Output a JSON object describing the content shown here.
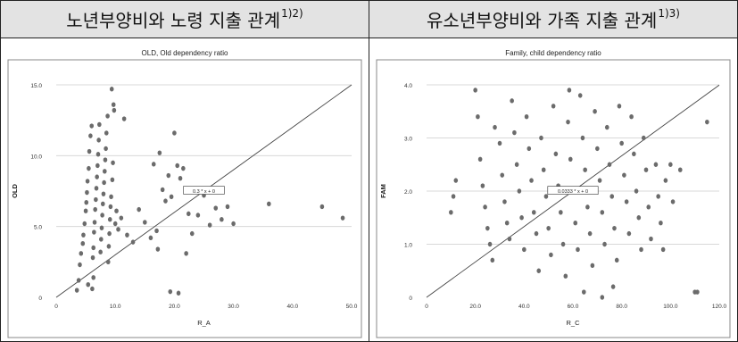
{
  "header": {
    "left": {
      "title": "노년부양비와 노령 지출 관계",
      "sup": "1)2)"
    },
    "right": {
      "title": "유소년부양비와 가족 지출 관계",
      "sup": "1)3)"
    }
  },
  "colors": {
    "point": "#6b6b6b",
    "line": "#444444",
    "grid": "#d8d8d8",
    "header_bg": "#e3e3e3"
  },
  "chart_data": [
    {
      "type": "scatter",
      "title": "OLD, Old dependency ratio",
      "xlabel": "R_A",
      "ylabel": "OLD",
      "xlim": [
        0,
        50
      ],
      "ylim": [
        0,
        15
      ],
      "xticks": [
        "0",
        "10.0",
        "20.0",
        "30.0",
        "40.0",
        "50.0"
      ],
      "yticks": [
        "0",
        "5.0",
        "10.0",
        "15.0"
      ],
      "fit_label": "0.3 * x + 0",
      "fit_slope": 0.3,
      "grid": "horizontal",
      "points": [
        [
          3.5,
          0.5
        ],
        [
          3.8,
          1.2
        ],
        [
          4,
          2.3
        ],
        [
          4.2,
          3.1
        ],
        [
          4.5,
          3.8
        ],
        [
          4.6,
          4.4
        ],
        [
          4.8,
          5.2
        ],
        [
          5,
          6.1
        ],
        [
          5.1,
          6.7
        ],
        [
          5.2,
          7.4
        ],
        [
          5.3,
          8.2
        ],
        [
          5.5,
          9.1
        ],
        [
          5.6,
          10.3
        ],
        [
          5.8,
          11.4
        ],
        [
          6,
          12.1
        ],
        [
          6.2,
          2.8
        ],
        [
          6.3,
          3.5
        ],
        [
          6.4,
          4.6
        ],
        [
          6.5,
          5.3
        ],
        [
          6.6,
          6.2
        ],
        [
          6.7,
          6.9
        ],
        [
          6.8,
          7.7
        ],
        [
          6.9,
          8.5
        ],
        [
          7,
          9.3
        ],
        [
          7.1,
          10.1
        ],
        [
          7.2,
          11.1
        ],
        [
          7.3,
          12.2
        ],
        [
          7.5,
          3.2
        ],
        [
          7.6,
          4.1
        ],
        [
          7.7,
          4.9
        ],
        [
          7.8,
          5.8
        ],
        [
          7.9,
          6.6
        ],
        [
          8,
          7.3
        ],
        [
          8.1,
          8.1
        ],
        [
          8.2,
          8.9
        ],
        [
          8.3,
          9.7
        ],
        [
          8.4,
          10.5
        ],
        [
          8.5,
          11.6
        ],
        [
          8.7,
          12.8
        ],
        [
          8.8,
          2.5
        ],
        [
          8.9,
          3.6
        ],
        [
          9,
          4.5
        ],
        [
          9.1,
          5.5
        ],
        [
          9.2,
          6.4
        ],
        [
          9.3,
          7.1
        ],
        [
          9.5,
          8.3
        ],
        [
          9.6,
          9.5
        ],
        [
          9.8,
          13.2
        ],
        [
          10,
          5.2
        ],
        [
          10.2,
          6.1
        ],
        [
          10.5,
          4.8
        ],
        [
          11,
          5.6
        ],
        [
          11.5,
          12.6
        ],
        [
          9.4,
          14.7
        ],
        [
          9.7,
          13.6
        ],
        [
          6.1,
          0.6
        ],
        [
          6.3,
          1.4
        ],
        [
          5.4,
          0.9
        ],
        [
          12,
          4.4
        ],
        [
          13,
          3.9
        ],
        [
          14,
          6.2
        ],
        [
          15,
          5.3
        ],
        [
          16,
          4.2
        ],
        [
          16.5,
          9.4
        ],
        [
          17,
          4.7
        ],
        [
          17.5,
          10.2
        ],
        [
          18,
          7.6
        ],
        [
          18.5,
          6.8
        ],
        [
          19,
          8.6
        ],
        [
          19.5,
          7.1
        ],
        [
          20,
          11.6
        ],
        [
          20.5,
          9.3
        ],
        [
          21,
          8.4
        ],
        [
          21.5,
          9.1
        ],
        [
          22,
          3.1
        ],
        [
          23,
          4.5
        ],
        [
          24,
          5.8
        ],
        [
          25,
          7.2
        ],
        [
          26,
          5.1
        ],
        [
          27,
          6.3
        ],
        [
          28,
          5.5
        ],
        [
          29,
          6.4
        ],
        [
          30,
          5.2
        ],
        [
          36,
          6.6
        ],
        [
          45,
          6.4
        ],
        [
          48.5,
          5.6
        ],
        [
          19.3,
          0.4
        ],
        [
          20.7,
          0.3
        ],
        [
          22.4,
          5.9
        ],
        [
          17.2,
          3.4
        ]
      ]
    },
    {
      "type": "scatter",
      "title": "Family, child dependency ratio",
      "xlabel": "R_C",
      "ylabel": "FAM",
      "xlim": [
        0,
        120
      ],
      "ylim": [
        0,
        4
      ],
      "xticks": [
        "0",
        "20.0",
        "40.0",
        "60.0",
        "80.0",
        "100.0",
        "120.0"
      ],
      "yticks": [
        "0",
        "1.0",
        "2.0",
        "3.0",
        "4.0"
      ],
      "fit_label": "0.0333 * x + 0",
      "fit_slope": 0.0333,
      "grid": "horizontal",
      "points": [
        [
          10,
          1.6
        ],
        [
          11,
          1.9
        ],
        [
          12,
          2.2
        ],
        [
          20,
          3.9
        ],
        [
          21,
          3.4
        ],
        [
          22,
          2.6
        ],
        [
          23,
          2.1
        ],
        [
          24,
          1.7
        ],
        [
          25,
          1.3
        ],
        [
          26,
          1
        ],
        [
          27,
          0.7
        ],
        [
          28,
          3.2
        ],
        [
          30,
          2.9
        ],
        [
          31,
          2.3
        ],
        [
          32,
          1.8
        ],
        [
          33,
          1.4
        ],
        [
          34,
          1.1
        ],
        [
          35,
          3.7
        ],
        [
          36,
          3.1
        ],
        [
          37,
          2.5
        ],
        [
          38,
          2
        ],
        [
          39,
          1.5
        ],
        [
          40,
          0.9
        ],
        [
          41,
          3.4
        ],
        [
          42,
          2.8
        ],
        [
          43,
          2.2
        ],
        [
          44,
          1.6
        ],
        [
          45,
          1.2
        ],
        [
          46,
          0.5
        ],
        [
          47,
          3
        ],
        [
          48,
          2.4
        ],
        [
          49,
          1.9
        ],
        [
          50,
          1.3
        ],
        [
          51,
          0.8
        ],
        [
          52,
          3.6
        ],
        [
          53,
          2.7
        ],
        [
          54,
          2.1
        ],
        [
          55,
          1.6
        ],
        [
          56,
          1
        ],
        [
          57,
          0.4
        ],
        [
          58,
          3.3
        ],
        [
          59,
          2.6
        ],
        [
          60,
          2
        ],
        [
          61,
          1.4
        ],
        [
          62,
          0.9
        ],
        [
          63,
          3.8
        ],
        [
          64,
          3
        ],
        [
          65,
          2.4
        ],
        [
          66,
          1.7
        ],
        [
          67,
          1.2
        ],
        [
          68,
          0.6
        ],
        [
          69,
          3.5
        ],
        [
          70,
          2.8
        ],
        [
          71,
          2.2
        ],
        [
          72,
          1.6
        ],
        [
          73,
          1
        ],
        [
          74,
          3.2
        ],
        [
          75,
          2.5
        ],
        [
          76,
          1.9
        ],
        [
          77,
          1.3
        ],
        [
          78,
          0.7
        ],
        [
          79,
          3.6
        ],
        [
          80,
          2.9
        ],
        [
          81,
          2.3
        ],
        [
          82,
          1.8
        ],
        [
          83,
          1.2
        ],
        [
          84,
          3.4
        ],
        [
          85,
          2.7
        ],
        [
          86,
          2
        ],
        [
          87,
          1.5
        ],
        [
          88,
          0.9
        ],
        [
          89,
          3
        ],
        [
          90,
          2.4
        ],
        [
          91,
          1.7
        ],
        [
          92,
          1.1
        ],
        [
          94,
          2.5
        ],
        [
          95,
          1.9
        ],
        [
          96,
          1.4
        ],
        [
          97,
          0.9
        ],
        [
          98,
          2.2
        ],
        [
          100,
          2.5
        ],
        [
          101,
          1.8
        ],
        [
          104,
          2.4
        ],
        [
          110,
          0.1
        ],
        [
          111,
          0.1
        ],
        [
          115,
          3.3
        ],
        [
          64.5,
          0.1
        ],
        [
          72,
          0
        ],
        [
          76.5,
          0.2
        ],
        [
          58.5,
          3.9
        ]
      ]
    }
  ]
}
